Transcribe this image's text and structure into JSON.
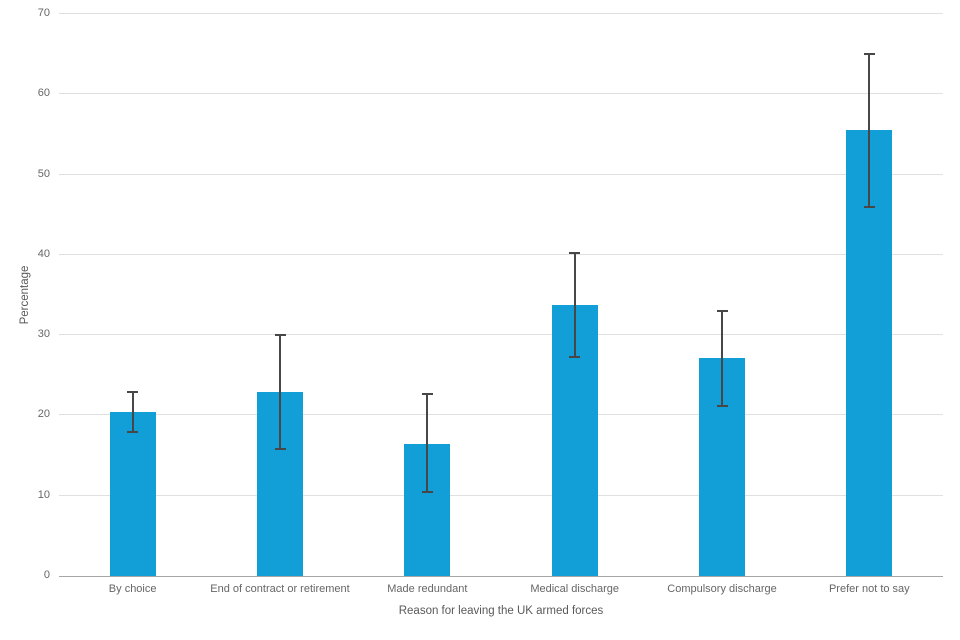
{
  "chart_data": {
    "type": "bar",
    "title": "",
    "xlabel": "Reason for leaving the UK armed forces",
    "ylabel": "Percentage",
    "ylim": [
      0,
      70
    ],
    "yticks": [
      0,
      10,
      20,
      30,
      40,
      50,
      60,
      70
    ],
    "grid": true,
    "legend": false,
    "categories": [
      "By choice",
      "End of contract or retirement",
      "Made redundant",
      "Medical discharge",
      "Compulsory discharge",
      "Prefer not to say"
    ],
    "series": [
      {
        "name": "Percentage",
        "values": [
          20.4,
          22.9,
          16.5,
          33.8,
          27.1,
          55.5
        ],
        "error_low": [
          17.8,
          15.7,
          10.3,
          27.1,
          21.1,
          45.8
        ],
        "error_high": [
          23.1,
          30.1,
          22.8,
          40.4,
          33.1,
          65.2
        ]
      }
    ],
    "colors": {
      "bar_fill": "#129FD8",
      "error_bar": "#474747",
      "gridline": "#E0E0E0",
      "axis_line": "#A6A6A6",
      "tick_label": "#666666",
      "axis_title": "#595959",
      "background": "#FFFFFF"
    }
  }
}
